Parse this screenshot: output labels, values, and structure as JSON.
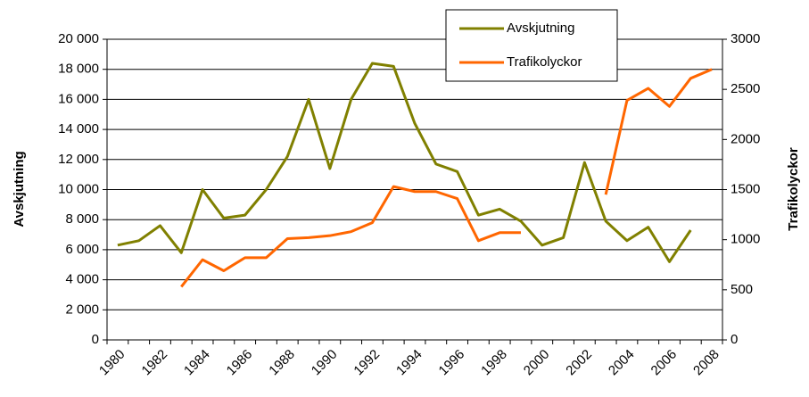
{
  "chart_data": {
    "type": "line",
    "ylabel": "Avskjutning",
    "y2label": "Trafikolyckor",
    "categories": [
      "1980",
      null,
      "1982",
      null,
      "1984",
      null,
      "1986",
      null,
      "1988",
      null,
      "1990",
      null,
      "1992",
      null,
      "1994",
      null,
      "1996",
      null,
      "1998",
      null,
      "2000",
      null,
      "2002",
      null,
      "2004",
      null,
      "2006",
      null,
      "2008"
    ],
    "series": [
      {
        "name": "Avskjutning",
        "color": "#808000",
        "axis": "y",
        "values": [
          6300,
          6600,
          7600,
          5800,
          10000,
          8100,
          8300,
          10000,
          12200,
          16000,
          11400,
          16000,
          18400,
          18200,
          14400,
          11700,
          11200,
          8300,
          8700,
          7900,
          6300,
          6800,
          11800,
          7900,
          6600,
          7500,
          5200,
          7300,
          null
        ]
      },
      {
        "name": "Trafikolyckor",
        "color": "#ff6600",
        "axis": "y2",
        "values": [
          null,
          null,
          null,
          530,
          800,
          690,
          820,
          820,
          1010,
          1020,
          1040,
          1080,
          1170,
          1530,
          1480,
          1480,
          1410,
          990,
          1070,
          1070,
          null,
          null,
          null,
          1450,
          2390,
          2510,
          2330,
          2610,
          2700
        ]
      }
    ],
    "ylim": [
      0,
      20000
    ],
    "yticks": [
      0,
      {
        "value": 2000,
        "label": "2 000"
      },
      {
        "value": 4000,
        "label": "4 000"
      },
      {
        "value": 6000,
        "label": "6 000"
      },
      {
        "value": 8000,
        "label": "8 000"
      },
      {
        "value": 10000,
        "label": "10 000"
      },
      {
        "value": 12000,
        "label": "12 000"
      },
      {
        "value": 14000,
        "label": "14 000"
      },
      {
        "value": 16000,
        "label": "16 000"
      },
      {
        "value": 18000,
        "label": "18 000"
      },
      {
        "value": 20000,
        "label": "20 000"
      }
    ],
    "y2lim": [
      0,
      3000
    ],
    "y2ticks": [
      0,
      500,
      1000,
      1500,
      2000,
      2500,
      3000
    ],
    "grid": true,
    "legend": "top"
  }
}
